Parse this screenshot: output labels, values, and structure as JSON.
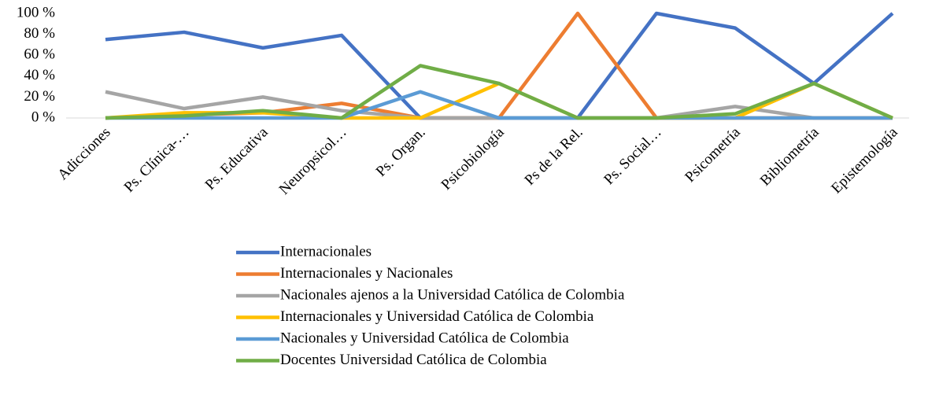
{
  "chart_data": {
    "type": "line",
    "categories": [
      "Adicciones",
      "Ps. Clínica-…",
      "Ps. Educativa",
      "Neuropsicol…",
      "Ps. Organ.",
      "Psicobiología",
      "Ps de la Rel.",
      "Ps. Social…",
      "Psicometría",
      "Bibliometría",
      "Epistemología"
    ],
    "series": [
      {
        "name": "Internacionales",
        "color": "#4472c4",
        "values": [
          75,
          82,
          67,
          79,
          0,
          0,
          0,
          100,
          86,
          33,
          100
        ]
      },
      {
        "name": "Internacionales y Nacionales",
        "color": "#ed7d31",
        "values": [
          0,
          3,
          5,
          14,
          0,
          0,
          100,
          0,
          0,
          0,
          0
        ]
      },
      {
        "name": "Nacionales ajenos a la Universidad Católica de Colombia",
        "color": "#a5a5a5",
        "values": [
          25,
          9,
          20,
          7,
          0,
          0,
          0,
          0,
          11,
          0,
          0
        ]
      },
      {
        "name": "Internacionales y Universidad Católica de Colombia",
        "color": "#ffc000",
        "values": [
          0,
          5,
          5,
          0,
          0,
          33,
          0,
          0,
          0,
          33,
          0
        ]
      },
      {
        "name": "Nacionales y Universidad Católica de Colombia",
        "color": "#5b9bd5",
        "values": [
          0,
          0,
          0,
          0,
          25,
          0,
          0,
          0,
          0,
          0,
          0
        ]
      },
      {
        "name": "Docentes Universidad Católica de Colombia",
        "color": "#70ad47",
        "values": [
          0,
          2,
          7,
          0,
          50,
          33,
          0,
          0,
          4,
          33,
          0
        ]
      }
    ],
    "ylim": [
      0,
      100
    ],
    "yticks": [
      {
        "value": 0,
        "label": "0 %"
      },
      {
        "value": 20,
        "label": "20 %"
      },
      {
        "value": 40,
        "label": "40 %"
      },
      {
        "value": 60,
        "label": "60 %"
      },
      {
        "value": 80,
        "label": "80 %"
      },
      {
        "value": 100,
        "label": "100 %"
      }
    ],
    "legend": "bottom"
  }
}
